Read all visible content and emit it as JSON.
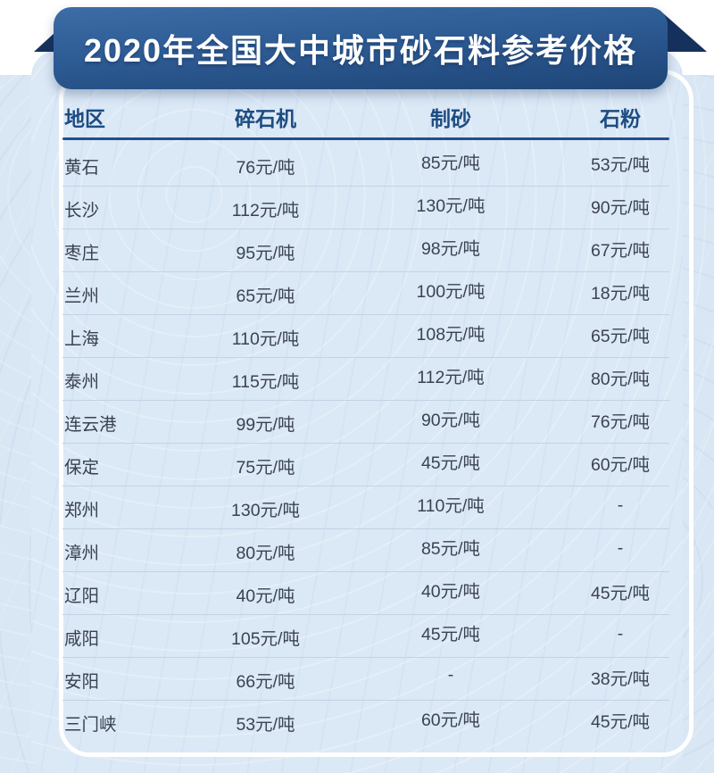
{
  "banner": {
    "title": "2020年全国大中城市砂石料参考价格"
  },
  "chart_data": {
    "type": "table",
    "title": "2020年全国大中城市砂石料参考价格",
    "columns": [
      "地区",
      "碎石机",
      "制砂",
      "石粉"
    ],
    "unit": "元/吨",
    "missing_value_marker": "-",
    "rows": [
      [
        "黄石",
        "76元/吨",
        "85元/吨",
        "53元/吨"
      ],
      [
        "长沙",
        "112元/吨",
        "130元/吨",
        "90元/吨"
      ],
      [
        "枣庄",
        "95元/吨",
        "98元/吨",
        "67元/吨"
      ],
      [
        "兰州",
        "65元/吨",
        "100元/吨",
        "18元/吨"
      ],
      [
        "上海",
        "110元/吨",
        "108元/吨",
        "65元/吨"
      ],
      [
        "泰州",
        "115元/吨",
        "112元/吨",
        "80元/吨"
      ],
      [
        "连云港",
        "99元/吨",
        "90元/吨",
        "76元/吨"
      ],
      [
        "保定",
        "75元/吨",
        "45元/吨",
        "60元/吨"
      ],
      [
        "郑州",
        "130元/吨",
        "110元/吨",
        "-"
      ],
      [
        "漳州",
        "80元/吨",
        "85元/吨",
        "-"
      ],
      [
        "辽阳",
        "40元/吨",
        "40元/吨",
        "45元/吨"
      ],
      [
        "咸阳",
        "105元/吨",
        "45元/吨",
        "-"
      ],
      [
        "安阳",
        "66元/吨",
        "-",
        "38元/吨"
      ],
      [
        "三门峡",
        "53元/吨",
        "60元/吨",
        "45元/吨"
      ]
    ]
  },
  "colors": {
    "background": "#d9e6f4",
    "top_band": "#ffffff",
    "banner_gradient_top": "#3d6da6",
    "banner_gradient_bottom": "#1e4577",
    "ribbon_fold": "#16315c",
    "card_border": "#ffffff",
    "header_text": "#1d4c82",
    "header_divider": "#20508a",
    "row_divider": "#c3d2e4",
    "cell_text": "#3b4353",
    "title_text": "#ffffff"
  }
}
